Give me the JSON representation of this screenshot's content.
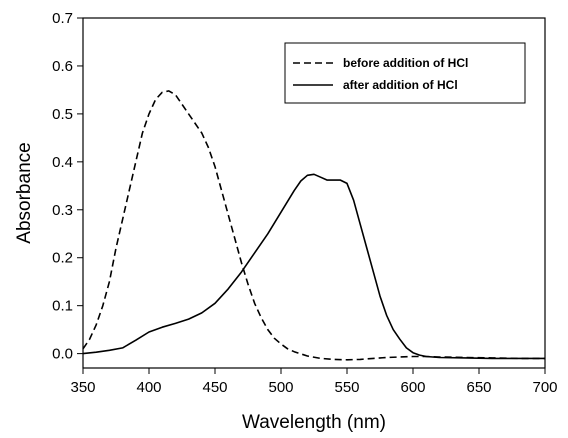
{
  "chart_data": {
    "type": "line",
    "title": "",
    "xlabel": "Wavelength (nm)",
    "ylabel": "Absorbance",
    "xlim": [
      350,
      700
    ],
    "ylim": [
      -0.03,
      0.7
    ],
    "xticks": [
      350,
      400,
      450,
      500,
      550,
      600,
      650,
      700
    ],
    "yticks": [
      0.0,
      0.1,
      0.2,
      0.3,
      0.4,
      0.5,
      0.6,
      0.7
    ],
    "grid": false,
    "legend_position": "top-right",
    "series": [
      {
        "name": "before addition of HCl",
        "line_style": "dashed",
        "color": "#000000",
        "x": [
          350,
          355,
          360,
          365,
          370,
          375,
          380,
          385,
          390,
          395,
          400,
          405,
          410,
          415,
          420,
          425,
          430,
          435,
          440,
          445,
          450,
          455,
          460,
          465,
          470,
          475,
          480,
          485,
          490,
          495,
          500,
          505,
          510,
          520,
          530,
          540,
          550,
          560,
          570,
          580,
          590,
          600,
          610,
          620,
          640,
          660,
          680,
          700
        ],
        "y": [
          0.01,
          0.03,
          0.06,
          0.1,
          0.15,
          0.22,
          0.28,
          0.34,
          0.4,
          0.46,
          0.5,
          0.53,
          0.545,
          0.548,
          0.54,
          0.52,
          0.5,
          0.48,
          0.46,
          0.43,
          0.39,
          0.34,
          0.29,
          0.24,
          0.19,
          0.145,
          0.105,
          0.075,
          0.05,
          0.032,
          0.02,
          0.01,
          0.004,
          -0.005,
          -0.01,
          -0.012,
          -0.013,
          -0.012,
          -0.01,
          -0.008,
          -0.007,
          -0.006,
          -0.006,
          -0.007,
          -0.008,
          -0.009,
          -0.01,
          -0.01
        ]
      },
      {
        "name": "after addition of HCl",
        "line_style": "solid",
        "color": "#000000",
        "x": [
          350,
          360,
          370,
          380,
          390,
          400,
          410,
          420,
          430,
          440,
          450,
          460,
          470,
          480,
          490,
          500,
          510,
          515,
          520,
          525,
          530,
          535,
          540,
          545,
          550,
          555,
          560,
          565,
          570,
          575,
          580,
          585,
          590,
          595,
          600,
          605,
          610,
          620,
          640,
          660,
          680,
          700
        ],
        "y": [
          0.0,
          0.003,
          0.007,
          0.012,
          0.028,
          0.045,
          0.055,
          0.063,
          0.072,
          0.085,
          0.105,
          0.135,
          0.17,
          0.21,
          0.25,
          0.295,
          0.34,
          0.36,
          0.372,
          0.374,
          0.368,
          0.362,
          0.362,
          0.362,
          0.355,
          0.32,
          0.27,
          0.22,
          0.17,
          0.12,
          0.08,
          0.05,
          0.03,
          0.012,
          0.002,
          -0.003,
          -0.006,
          -0.008,
          -0.009,
          -0.01,
          -0.01,
          -0.01
        ]
      }
    ]
  }
}
